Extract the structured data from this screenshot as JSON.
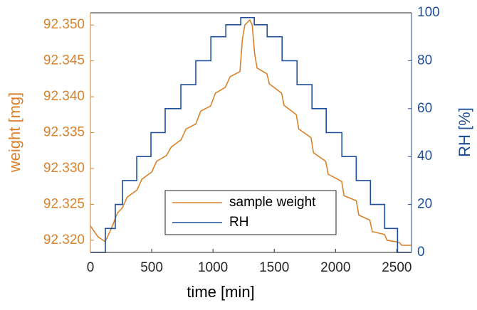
{
  "chart_data": {
    "type": "line",
    "xlabel": "time [min]",
    "ylabel": "weight [mg]",
    "y2label": "RH [%]",
    "xlim": [
      0,
      2620
    ],
    "xticks": [
      0,
      500,
      1000,
      1500,
      2000,
      2500
    ],
    "ylim": [
      92.3183,
      92.3517
    ],
    "yticks": [
      {
        "value": 92.32,
        "label": "92.320"
      },
      {
        "value": 92.325,
        "label": "92.325"
      },
      {
        "value": 92.33,
        "label": "92.330"
      },
      {
        "value": 92.335,
        "label": "92.335"
      },
      {
        "value": 92.34,
        "label": "92.340"
      },
      {
        "value": 92.345,
        "label": "92.345"
      },
      {
        "value": 92.35,
        "label": "92.350"
      }
    ],
    "y2lim": [
      0,
      100
    ],
    "y2ticks": [
      0,
      20,
      40,
      60,
      80,
      100
    ],
    "y_color": "#d9822b",
    "y2_color": "#1f4e9a",
    "series": [
      {
        "name": "sample weight",
        "color": "#d9822b",
        "axis": "y",
        "x": [
          0,
          60,
          120,
          140,
          180,
          220,
          260,
          300,
          380,
          420,
          500,
          540,
          620,
          660,
          740,
          780,
          860,
          900,
          980,
          1020,
          1100,
          1140,
          1220,
          1240,
          1260,
          1300,
          1320,
          1340,
          1360,
          1440,
          1460,
          1560,
          1580,
          1680,
          1700,
          1800,
          1820,
          1920,
          1940,
          2050,
          2070,
          2170,
          2190,
          2280,
          2300,
          2400,
          2420,
          2520,
          2540,
          2620
        ],
        "values": [
          92.322,
          92.3205,
          92.3198,
          92.3205,
          92.322,
          92.3238,
          92.3245,
          92.326,
          92.327,
          92.3285,
          92.3295,
          92.331,
          92.3318,
          92.333,
          92.334,
          92.3355,
          92.3362,
          92.338,
          92.3387,
          92.3405,
          92.3413,
          92.3428,
          92.3435,
          92.348,
          92.35,
          92.3507,
          92.35,
          92.346,
          92.344,
          92.3432,
          92.3418,
          92.3405,
          92.3388,
          92.3375,
          92.3355,
          92.3343,
          92.3322,
          92.331,
          92.3292,
          92.3282,
          92.3262,
          92.3255,
          92.3235,
          92.3228,
          92.3212,
          92.3208,
          92.32,
          92.3197,
          92.3193,
          92.3193
        ]
      },
      {
        "name": "RH",
        "color": "#1f4e9a",
        "axis": "y2",
        "x": [
          0,
          122,
          122,
          203,
          203,
          262,
          262,
          378,
          378,
          494,
          494,
          610,
          610,
          738,
          738,
          860,
          860,
          983,
          983,
          1105,
          1105,
          1227,
          1227,
          1337,
          1337,
          1442,
          1442,
          1564,
          1564,
          1686,
          1686,
          1808,
          1808,
          1924,
          1924,
          2052,
          2052,
          2169,
          2169,
          2285,
          2285,
          2401,
          2401,
          2506,
          2506,
          2620
        ],
        "values": [
          0,
          0,
          10,
          10,
          20,
          20,
          30,
          30,
          40,
          40,
          50,
          50,
          60,
          60,
          70,
          70,
          80,
          80,
          90,
          90,
          95,
          95,
          98,
          98,
          95,
          95,
          90,
          90,
          80,
          80,
          70,
          70,
          60,
          60,
          50,
          50,
          40,
          40,
          30,
          30,
          20,
          20,
          10,
          10,
          0,
          0
        ]
      }
    ]
  }
}
